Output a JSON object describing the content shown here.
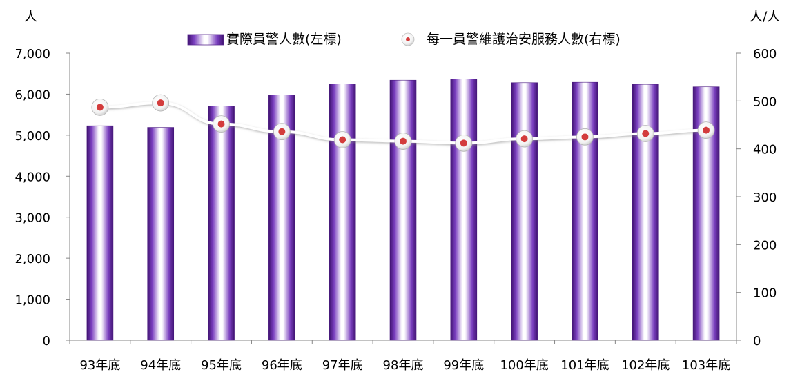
{
  "chart_data": {
    "type": "bar",
    "categories": [
      "93年底",
      "94年底",
      "95年底",
      "96年底",
      "97年底",
      "98年底",
      "99年底",
      "100年底",
      "101年底",
      "102年底",
      "103年底"
    ],
    "series": [
      {
        "name": "實際員警人數(左標)",
        "type": "bar",
        "axis": "left",
        "color": "#6a2fa8",
        "values": [
          5230,
          5190,
          5710,
          5980,
          6250,
          6340,
          6370,
          6280,
          6290,
          6240,
          6180
        ]
      },
      {
        "name": "每一員警維護治安服務人數(右標)",
        "type": "line",
        "axis": "right",
        "marker_color": "#d33c3c",
        "values": [
          487,
          496,
          452,
          436,
          419,
          416,
          412,
          421,
          425,
          432,
          439
        ]
      }
    ],
    "left_axis": {
      "unit": "人",
      "ylim": [
        0,
        7000
      ],
      "tick_values": [
        0,
        1000,
        2000,
        3000,
        4000,
        5000,
        6000,
        7000
      ],
      "tick_labels": [
        "0",
        "1,000",
        "2,000",
        "3,000",
        "4,000",
        "5,000",
        "6,000",
        "7,000"
      ]
    },
    "right_axis": {
      "unit": "人/人",
      "ylim": [
        0,
        600
      ],
      "tick_values": [
        0,
        100,
        200,
        300,
        400,
        500,
        600
      ],
      "tick_labels": [
        "0",
        "100",
        "200",
        "300",
        "400",
        "500",
        "600"
      ]
    },
    "grid": false,
    "legend_position": "top"
  }
}
